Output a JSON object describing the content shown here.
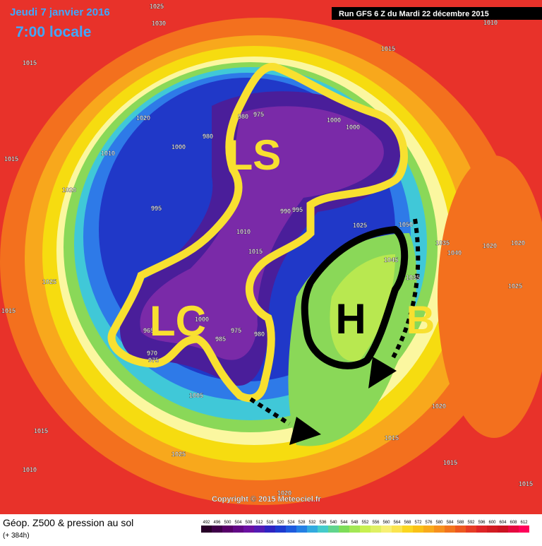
{
  "header": {
    "date": "Jeudi 7 janvier 2016",
    "time": "7:00 locale",
    "run": "Run GFS 6 Z du Mardi 22 décembre 2015"
  },
  "footer": {
    "title": "Géop. Z500 & pression au sol",
    "lead": "(+ 384h)",
    "copyright": "Copyright © 2015 Meteociel.fr",
    "scale": [
      492,
      496,
      500,
      504,
      508,
      512,
      516,
      520,
      524,
      528,
      532,
      536,
      540,
      544,
      548,
      552,
      556,
      560,
      564,
      568,
      572,
      576,
      580,
      584,
      588,
      592,
      596,
      600,
      604,
      608,
      612
    ]
  },
  "annotations": [
    "LS",
    "LC",
    "H",
    "B"
  ],
  "isobar_labels": [
    1025,
    1030,
    1015,
    1015,
    1020,
    1010,
    1000,
    980,
    980,
    975,
    1000,
    1000,
    1015,
    1020,
    995,
    990,
    995,
    1010,
    1015,
    1025,
    1050,
    1035,
    1040,
    1020,
    1020,
    1045,
    1035,
    1025,
    1025,
    1015,
    965,
    1000,
    975,
    985,
    980,
    970,
    975,
    1005,
    1020,
    1015,
    1015,
    1025,
    1010,
    1015,
    1015,
    1020,
    1010
  ]
}
